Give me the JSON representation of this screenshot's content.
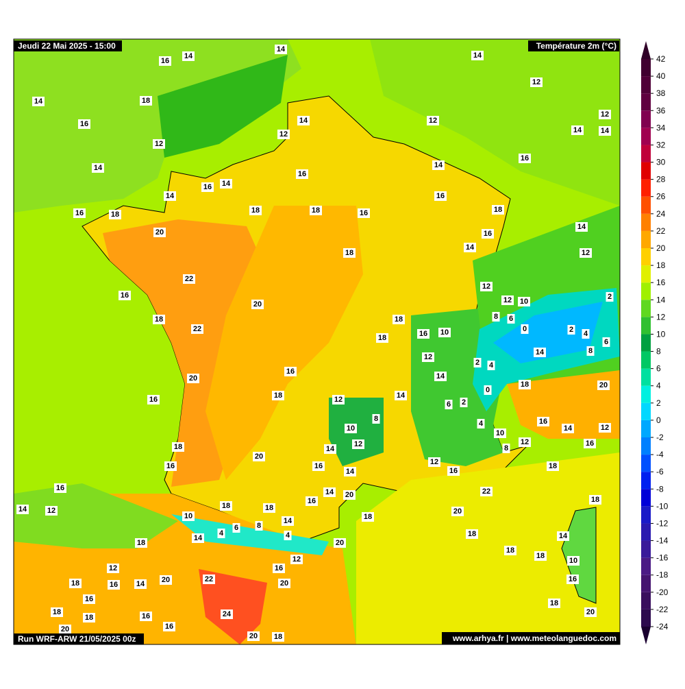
{
  "header": {
    "datetime": "Jeudi 22 Mai 2025 - 15:00",
    "field": "Température 2m (°C)",
    "run": "Run WRF-ARW 21/05/2025 00z",
    "credits": "www.arhya.fr | www.meteolanguedoc.com"
  },
  "colorbar": {
    "ticks": [
      -24,
      -22,
      -20,
      -18,
      -16,
      -14,
      -12,
      -10,
      -8,
      -6,
      -4,
      -2,
      0,
      2,
      4,
      6,
      8,
      10,
      12,
      14,
      16,
      18,
      20,
      22,
      24,
      26,
      28,
      30,
      32,
      34,
      36,
      38,
      40,
      42
    ],
    "colors": [
      "#2d0a4e",
      "#3a0f5e",
      "#451470",
      "#4b1a85",
      "#3a1a9a",
      "#2a1ab0",
      "#1a1ac8",
      "#0000d8",
      "#0020f0",
      "#0050ff",
      "#0080ff",
      "#00a8ff",
      "#00d8ff",
      "#00f0e0",
      "#00e0a0",
      "#00c864",
      "#00a040",
      "#30c030",
      "#60d820",
      "#a0f000",
      "#e0f000",
      "#ffd000",
      "#ffa800",
      "#ff8000",
      "#ff5000",
      "#ff2000",
      "#e00000",
      "#c0003a",
      "#a00050",
      "#800050",
      "#600040",
      "#500038",
      "#400030"
    ],
    "under_color": "#1a0030",
    "over_color": "#300028"
  },
  "map_labels": [
    14,
    14,
    16,
    14,
    14,
    18,
    12,
    16,
    14,
    12,
    12,
    14,
    14,
    12,
    12,
    14,
    14,
    16,
    16,
    16,
    14,
    14,
    16,
    16,
    18,
    18,
    18,
    16,
    18,
    14,
    20,
    16,
    18,
    14,
    12,
    22,
    12,
    16,
    20,
    12,
    10,
    2,
    18,
    22,
    18,
    8,
    6,
    0,
    2,
    4,
    16,
    10,
    18,
    6,
    8,
    14,
    12,
    2,
    4,
    20,
    16,
    14,
    0,
    18,
    20,
    18,
    16,
    12,
    14,
    6,
    2,
    8,
    16,
    14,
    12,
    4,
    10,
    10,
    12,
    12,
    8,
    16,
    18,
    20,
    14,
    12,
    18,
    16,
    16,
    16,
    14,
    16,
    22,
    14,
    20,
    16,
    18,
    18,
    18,
    14,
    12,
    20,
    18,
    10,
    14,
    6,
    8,
    4,
    4,
    14,
    18,
    14,
    18,
    20,
    18,
    18,
    12,
    10,
    12,
    16,
    16,
    20,
    22,
    18,
    16,
    14,
    20,
    16,
    18,
    18,
    18,
    16,
    24,
    20,
    16,
    20,
    20,
    18
  ]
}
